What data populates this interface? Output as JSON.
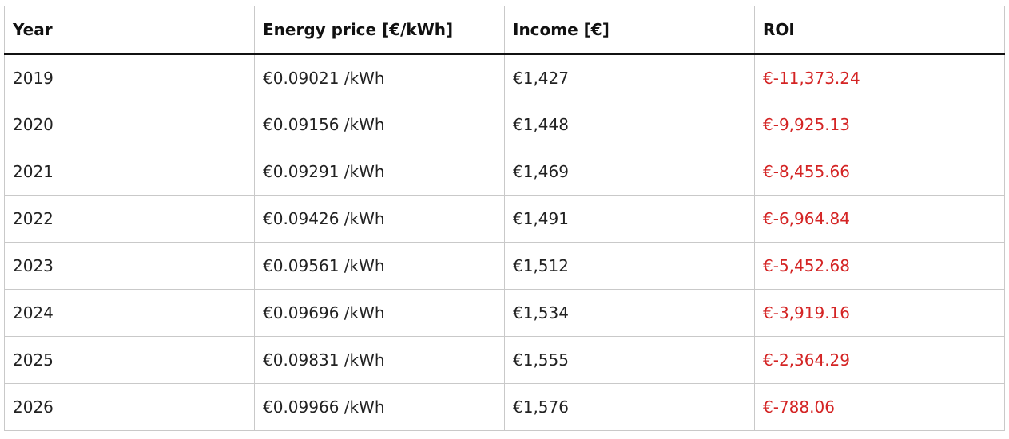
{
  "table": {
    "headers": {
      "year": "Year",
      "energy_price": "Energy price [€/kWh]",
      "income": "Income [€]",
      "roi": "ROI"
    },
    "rows": [
      {
        "year": "2019",
        "energy_price": "€0.09021 /kWh",
        "income": "€1,427",
        "roi": "€-11,373.24"
      },
      {
        "year": "2020",
        "energy_price": "€0.09156 /kWh",
        "income": "€1,448",
        "roi": "€-9,925.13"
      },
      {
        "year": "2021",
        "energy_price": "€0.09291 /kWh",
        "income": "€1,469",
        "roi": "€-8,455.66"
      },
      {
        "year": "2022",
        "energy_price": "€0.09426 /kWh",
        "income": "€1,491",
        "roi": "€-6,964.84"
      },
      {
        "year": "2023",
        "energy_price": "€0.09561 /kWh",
        "income": "€1,512",
        "roi": "€-5,452.68"
      },
      {
        "year": "2024",
        "energy_price": "€0.09696 /kWh",
        "income": "€1,534",
        "roi": "€-3,919.16"
      },
      {
        "year": "2025",
        "energy_price": "€0.09831 /kWh",
        "income": "€1,555",
        "roi": "€-2,364.29"
      },
      {
        "year": "2026",
        "energy_price": "€0.09966 /kWh",
        "income": "€1,576",
        "roi": "€-788.06"
      }
    ]
  },
  "colors": {
    "negative_roi": "#d42424",
    "header_rule": "#111111",
    "grid": "#c9c9c9"
  }
}
